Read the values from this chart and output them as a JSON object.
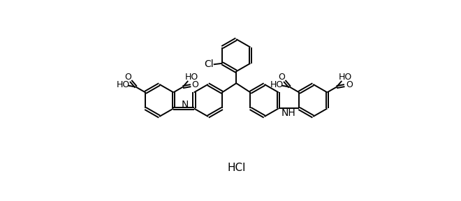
{
  "bg": "#ffffff",
  "lc": "#000000",
  "lw": 1.4,
  "figsize": [
    6.6,
    2.88
  ],
  "dpi": 100,
  "hcl_text": "HCl",
  "hcl_fs": 11,
  "cl_text": "Cl",
  "n_text": "N",
  "nh_text": "NH",
  "ho_text": "HO",
  "o_text": "O",
  "ring_r": 30
}
